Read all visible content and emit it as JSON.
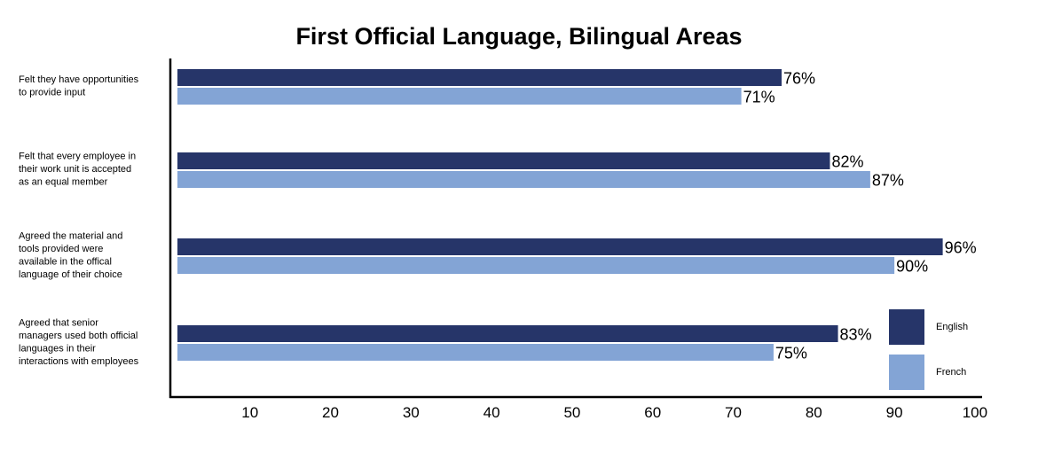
{
  "chart_data": {
    "type": "bar",
    "orientation": "horizontal",
    "title": "First Official Language, Bilingual Areas",
    "categories": [
      [
        "Felt they have opportunities",
        "to provide input"
      ],
      [
        "Felt that every employee in",
        "their work unit is accepted",
        "as an equal member"
      ],
      [
        "Agreed the material and",
        "tools provided were",
        "available in the offical",
        "language of their choice"
      ],
      [
        "Agreed that senior",
        "managers used both official",
        "languages in their",
        "interactions with employees"
      ]
    ],
    "series": [
      {
        "name": "English",
        "color": "#263569",
        "values": [
          76,
          82,
          96,
          83
        ],
        "labels": [
          "76%",
          "82%",
          "96%",
          "83%"
        ]
      },
      {
        "name": "French",
        "color": "#83a4d5",
        "values": [
          71,
          87,
          90,
          75
        ],
        "labels": [
          "71%",
          "87%",
          "90%",
          "75%"
        ]
      }
    ],
    "xticks": [
      "10",
      "20",
      "30",
      "40",
      "50",
      "60",
      "70",
      "80",
      "90",
      "100"
    ],
    "xlim": [
      1,
      100
    ],
    "grid": false,
    "legend_position": "bottom-right"
  }
}
